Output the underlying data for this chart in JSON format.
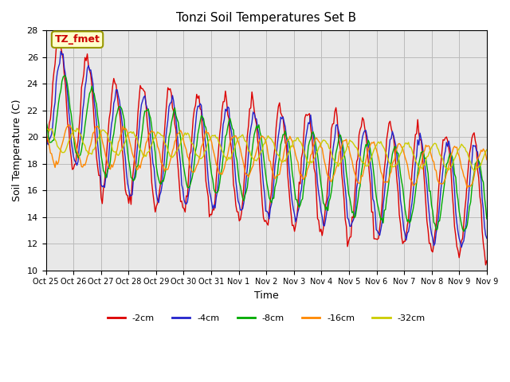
{
  "title": "Tonzi Soil Temperatures Set B",
  "xlabel": "Time",
  "ylabel": "Soil Temperature (C)",
  "ylim": [
    10,
    28
  ],
  "annotation_text": "TZ_fmet",
  "annotation_color": "#cc0000",
  "annotation_bg": "#ffffcc",
  "annotation_border": "#999900",
  "bg_color": "#e8e8e8",
  "series_colors": [
    "#dd0000",
    "#2222cc",
    "#00aa00",
    "#ff8800",
    "#cccc00"
  ],
  "series_labels": [
    "-2cm",
    "-4cm",
    "-8cm",
    "-16cm",
    "-32cm"
  ],
  "tick_labels": [
    "Oct 25",
    "Oct 26",
    "Oct 27",
    "Oct 28",
    "Oct 29",
    "Oct 30",
    "Oct 31",
    "Nov 1",
    "Nov 2",
    "Nov 3",
    "Nov 4",
    "Nov 5",
    "Nov 6",
    "Nov 7",
    "Nov 8",
    "Nov 9",
    "Nov 9"
  ],
  "tick_positions": [
    0,
    1,
    2,
    3,
    4,
    5,
    6,
    7,
    8,
    9,
    10,
    11,
    12,
    13,
    14,
    15,
    16
  ],
  "yticks": [
    10,
    12,
    14,
    16,
    18,
    20,
    22,
    24,
    26,
    28
  ]
}
